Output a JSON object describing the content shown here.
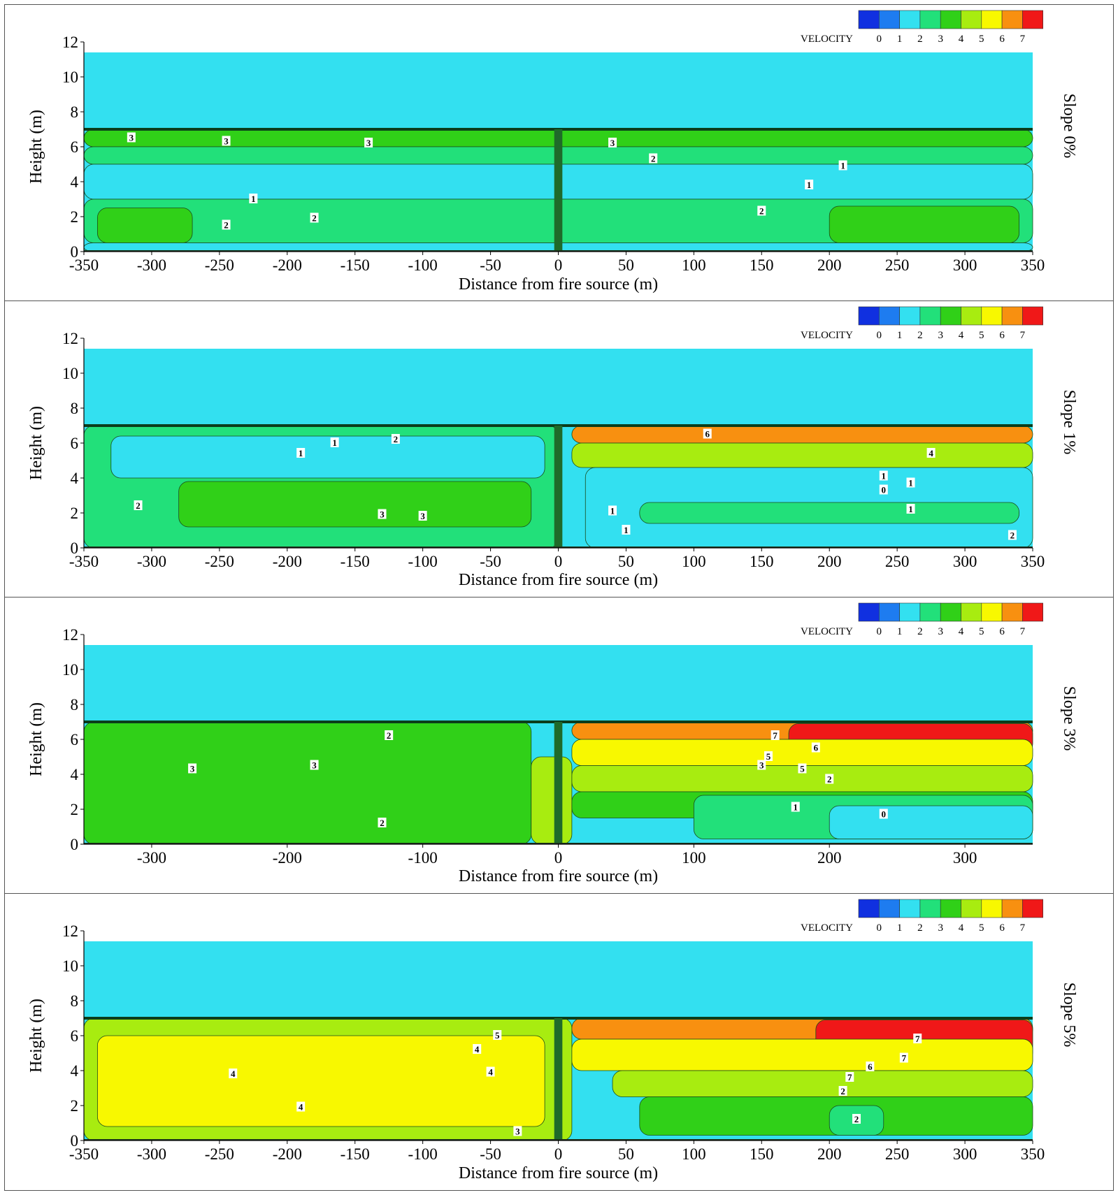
{
  "legend": {
    "title": "VELOCITY",
    "levels": [
      "0",
      "1",
      "2",
      "3",
      "4",
      "5",
      "6",
      "7"
    ],
    "colors": [
      "#1030e0",
      "#1e7cf0",
      "#33e0f0",
      "#22e07a",
      "#30d018",
      "#a8ec10",
      "#f8f800",
      "#f89010",
      "#f01818"
    ]
  },
  "chart_data": [
    {
      "type": "heatmap",
      "panel_label": "Slope 0%",
      "xlabel": "Distance from fire source (m)",
      "ylabel": "Height (m)",
      "xlim": [
        -350,
        350
      ],
      "ylim": [
        0,
        12
      ],
      "xticks": [
        "-350",
        "-300",
        "-250",
        "-200",
        "-150",
        "-100",
        "-50",
        "0",
        "50",
        "100",
        "150",
        "200",
        "250",
        "300",
        "350"
      ],
      "yticks": [
        "0",
        "2",
        "4",
        "6",
        "8",
        "10",
        "12"
      ],
      "tunnel_top_height": 7.0,
      "upper_region_level": 1,
      "velocity_bands": [
        {
          "x": [
            -350,
            350
          ],
          "y": [
            6.0,
            7.0
          ],
          "level": 3
        },
        {
          "x": [
            -350,
            350
          ],
          "y": [
            5.0,
            6.0
          ],
          "level": 2
        },
        {
          "x": [
            -350,
            350
          ],
          "y": [
            3.0,
            5.0
          ],
          "level": 1
        },
        {
          "x": [
            -350,
            350
          ],
          "y": [
            0.5,
            3.0
          ],
          "level": 2
        },
        {
          "x": [
            -340,
            -270
          ],
          "y": [
            0.5,
            2.5
          ],
          "level": 3
        },
        {
          "x": [
            200,
            340
          ],
          "y": [
            0.5,
            2.6
          ],
          "level": 3
        },
        {
          "x": [
            -350,
            350
          ],
          "y": [
            0,
            0.5
          ],
          "level": 1
        }
      ],
      "contour_labels": [
        {
          "x": -315,
          "y": 6.5,
          "label": "3"
        },
        {
          "x": -245,
          "y": 6.3,
          "label": "3"
        },
        {
          "x": -140,
          "y": 6.2,
          "label": "3"
        },
        {
          "x": 40,
          "y": 6.2,
          "label": "3"
        },
        {
          "x": 70,
          "y": 5.3,
          "label": "2"
        },
        {
          "x": 210,
          "y": 4.9,
          "label": "1"
        },
        {
          "x": 185,
          "y": 3.8,
          "label": "1"
        },
        {
          "x": -225,
          "y": 3.0,
          "label": "1"
        },
        {
          "x": -180,
          "y": 1.9,
          "label": "2"
        },
        {
          "x": 150,
          "y": 2.3,
          "label": "2"
        },
        {
          "x": -245,
          "y": 1.5,
          "label": "2"
        }
      ]
    },
    {
      "type": "heatmap",
      "panel_label": "Slope 1%",
      "xlabel": "Distance from fire source (m)",
      "ylabel": "Height (m)",
      "xlim": [
        -350,
        350
      ],
      "ylim": [
        0,
        12
      ],
      "xticks": [
        "-350",
        "-300",
        "-250",
        "-200",
        "-150",
        "-100",
        "-50",
        "0",
        "50",
        "100",
        "150",
        "200",
        "250",
        "300",
        "350"
      ],
      "yticks": [
        "0",
        "2",
        "4",
        "6",
        "8",
        "10",
        "12"
      ],
      "tunnel_top_height": 7.0,
      "upper_region_level": 1,
      "velocity_bands": [
        {
          "x": [
            -350,
            0
          ],
          "y": [
            0,
            7.0
          ],
          "level": 2
        },
        {
          "x": [
            -330,
            -10
          ],
          "y": [
            4.0,
            6.4
          ],
          "level": 1
        },
        {
          "x": [
            -280,
            -20
          ],
          "y": [
            1.2,
            3.8
          ],
          "level": 3
        },
        {
          "x": [
            10,
            350
          ],
          "y": [
            6.0,
            7.0
          ],
          "level": 6
        },
        {
          "x": [
            10,
            350
          ],
          "y": [
            4.6,
            6.0
          ],
          "level": 4
        },
        {
          "x": [
            20,
            350
          ],
          "y": [
            0,
            4.6
          ],
          "level": 1
        },
        {
          "x": [
            60,
            340
          ],
          "y": [
            1.4,
            2.6
          ],
          "level": 2
        }
      ],
      "contour_labels": [
        {
          "x": -165,
          "y": 6.0,
          "label": "1"
        },
        {
          "x": -120,
          "y": 6.2,
          "label": "2"
        },
        {
          "x": -190,
          "y": 5.4,
          "label": "1"
        },
        {
          "x": 110,
          "y": 6.5,
          "label": "6"
        },
        {
          "x": 275,
          "y": 5.4,
          "label": "4"
        },
        {
          "x": 240,
          "y": 4.1,
          "label": "1"
        },
        {
          "x": 260,
          "y": 3.7,
          "label": "1"
        },
        {
          "x": 240,
          "y": 3.3,
          "label": "0"
        },
        {
          "x": 260,
          "y": 2.2,
          "label": "1"
        },
        {
          "x": 40,
          "y": 2.1,
          "label": "1"
        },
        {
          "x": 50,
          "y": 1.0,
          "label": "1"
        },
        {
          "x": 335,
          "y": 0.7,
          "label": "2"
        },
        {
          "x": -310,
          "y": 2.4,
          "label": "2"
        },
        {
          "x": -130,
          "y": 1.9,
          "label": "3"
        },
        {
          "x": -100,
          "y": 1.8,
          "label": "3"
        }
      ]
    },
    {
      "type": "heatmap",
      "panel_label": "Slope 3%",
      "xlabel": "Distance from fire source (m)",
      "ylabel": "Height (m)",
      "xlim": [
        -350,
        350
      ],
      "ylim": [
        0,
        12
      ],
      "xticks": [
        "-300",
        "-200",
        "-100",
        "0",
        "100",
        "200",
        "300"
      ],
      "yticks": [
        "0",
        "2",
        "4",
        "6",
        "8",
        "10",
        "12"
      ],
      "tunnel_top_height": 7.0,
      "upper_region_level": 1,
      "velocity_bands": [
        {
          "x": [
            -350,
            -20
          ],
          "y": [
            0,
            7.0
          ],
          "level": 3
        },
        {
          "x": [
            -20,
            10
          ],
          "y": [
            0,
            5.0
          ],
          "level": 4
        },
        {
          "x": [
            10,
            350
          ],
          "y": [
            6.0,
            7.0
          ],
          "level": 6
        },
        {
          "x": [
            170,
            350
          ],
          "y": [
            5.2,
            6.9
          ],
          "level": 7
        },
        {
          "x": [
            10,
            350
          ],
          "y": [
            4.5,
            6.0
          ],
          "level": 5
        },
        {
          "x": [
            10,
            350
          ],
          "y": [
            3.0,
            4.5
          ],
          "level": 4
        },
        {
          "x": [
            10,
            350
          ],
          "y": [
            1.5,
            3.0
          ],
          "level": 3
        },
        {
          "x": [
            100,
            350
          ],
          "y": [
            0.3,
            2.8
          ],
          "level": 2
        },
        {
          "x": [
            200,
            350
          ],
          "y": [
            0.3,
            2.2
          ],
          "level": 1
        }
      ],
      "contour_labels": [
        {
          "x": -125,
          "y": 6.2,
          "label": "2"
        },
        {
          "x": -270,
          "y": 4.3,
          "label": "3"
        },
        {
          "x": -180,
          "y": 4.5,
          "label": "3"
        },
        {
          "x": -130,
          "y": 1.2,
          "label": "2"
        },
        {
          "x": 160,
          "y": 6.2,
          "label": "7"
        },
        {
          "x": 190,
          "y": 5.5,
          "label": "6"
        },
        {
          "x": 155,
          "y": 5.0,
          "label": "5"
        },
        {
          "x": 150,
          "y": 4.5,
          "label": "3"
        },
        {
          "x": 180,
          "y": 4.3,
          "label": "5"
        },
        {
          "x": 200,
          "y": 3.7,
          "label": "2"
        },
        {
          "x": 175,
          "y": 2.1,
          "label": "1"
        },
        {
          "x": 240,
          "y": 1.7,
          "label": "0"
        }
      ]
    },
    {
      "type": "heatmap",
      "panel_label": "Slope 5%",
      "xlabel": "Distance from fire source (m)",
      "ylabel": "Height (m)",
      "xlim": [
        -350,
        350
      ],
      "ylim": [
        0,
        12
      ],
      "xticks": [
        "-350",
        "-300",
        "-250",
        "-200",
        "-150",
        "-100",
        "-50",
        "0",
        "50",
        "100",
        "150",
        "200",
        "250",
        "300",
        "350"
      ],
      "yticks": [
        "0",
        "2",
        "4",
        "6",
        "8",
        "10",
        "12"
      ],
      "tunnel_top_height": 7.0,
      "upper_region_level": 1,
      "velocity_bands": [
        {
          "x": [
            -350,
            10
          ],
          "y": [
            0,
            7.0
          ],
          "level": 4
        },
        {
          "x": [
            -340,
            -10
          ],
          "y": [
            0.8,
            6.0
          ],
          "level": 5
        },
        {
          "x": [
            10,
            350
          ],
          "y": [
            5.8,
            7.0
          ],
          "level": 6
        },
        {
          "x": [
            190,
            350
          ],
          "y": [
            4.5,
            6.9
          ],
          "level": 7
        },
        {
          "x": [
            10,
            350
          ],
          "y": [
            4.0,
            5.8
          ],
          "level": 5
        },
        {
          "x": [
            40,
            350
          ],
          "y": [
            2.5,
            4.0
          ],
          "level": 4
        },
        {
          "x": [
            60,
            350
          ],
          "y": [
            0.3,
            2.5
          ],
          "level": 3
        },
        {
          "x": [
            200,
            240
          ],
          "y": [
            0.3,
            2.0
          ],
          "level": 2
        }
      ],
      "contour_labels": [
        {
          "x": -45,
          "y": 6.0,
          "label": "5"
        },
        {
          "x": -60,
          "y": 5.2,
          "label": "4"
        },
        {
          "x": -50,
          "y": 3.9,
          "label": "4"
        },
        {
          "x": -240,
          "y": 3.8,
          "label": "4"
        },
        {
          "x": -190,
          "y": 1.9,
          "label": "4"
        },
        {
          "x": -30,
          "y": 0.5,
          "label": "3"
        },
        {
          "x": 265,
          "y": 5.8,
          "label": "7"
        },
        {
          "x": 255,
          "y": 4.7,
          "label": "7"
        },
        {
          "x": 230,
          "y": 4.2,
          "label": "6"
        },
        {
          "x": 215,
          "y": 3.6,
          "label": "7"
        },
        {
          "x": 210,
          "y": 2.8,
          "label": "2"
        },
        {
          "x": 220,
          "y": 1.2,
          "label": "2"
        }
      ]
    }
  ]
}
